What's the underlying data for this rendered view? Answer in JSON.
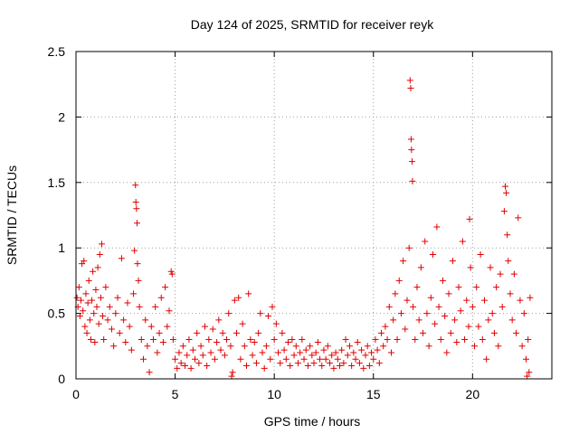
{
  "chart_data": {
    "type": "scatter",
    "title": "Day 124 of 2025, SRMTID for receiver reyk",
    "xlabel": "GPS time / hours",
    "ylabel": "SRMTID / TECUs",
    "xlim": [
      0,
      24
    ],
    "ylim": [
      0,
      2.5
    ],
    "x_ticks": [
      0,
      5,
      10,
      15,
      20
    ],
    "x_tick_labels": [
      "0",
      "5",
      "10",
      "15",
      "20"
    ],
    "y_ticks": [
      0,
      0.5,
      1,
      1.5,
      2,
      2.5
    ],
    "y_tick_labels": [
      "0",
      "0.5",
      "1",
      "1.5",
      "2",
      "2.5"
    ],
    "grid": true,
    "marker": "plus",
    "color": "#e00000",
    "series": [
      {
        "name": "SRMTID",
        "points": [
          [
            0.05,
            0.62
          ],
          [
            0.1,
            0.55
          ],
          [
            0.15,
            0.7
          ],
          [
            0.2,
            0.48
          ],
          [
            0.25,
            0.6
          ],
          [
            0.3,
            0.88
          ],
          [
            0.35,
            0.52
          ],
          [
            0.4,
            0.9
          ],
          [
            0.45,
            0.4
          ],
          [
            0.5,
            0.65
          ],
          [
            0.55,
            0.35
          ],
          [
            0.6,
            0.58
          ],
          [
            0.65,
            0.75
          ],
          [
            0.7,
            0.45
          ],
          [
            0.75,
            0.3
          ],
          [
            0.8,
            0.6
          ],
          [
            0.85,
            0.82
          ],
          [
            0.9,
            0.5
          ],
          [
            0.95,
            0.28
          ],
          [
            1.0,
            0.68
          ],
          [
            1.05,
            0.55
          ],
          [
            1.1,
            0.85
          ],
          [
            1.15,
            0.42
          ],
          [
            1.2,
            0.95
          ],
          [
            1.25,
            0.62
          ],
          [
            1.3,
            1.03
          ],
          [
            1.35,
            0.48
          ],
          [
            1.4,
            0.3
          ],
          [
            1.5,
            0.7
          ],
          [
            1.6,
            0.45
          ],
          [
            1.7,
            0.55
          ],
          [
            1.8,
            0.38
          ],
          [
            1.9,
            0.25
          ],
          [
            2.0,
            0.5
          ],
          [
            2.1,
            0.62
          ],
          [
            2.2,
            0.35
          ],
          [
            2.3,
            0.92
          ],
          [
            2.4,
            0.45
          ],
          [
            2.5,
            0.28
          ],
          [
            2.6,
            0.58
          ],
          [
            2.7,
            0.4
          ],
          [
            2.8,
            0.22
          ],
          [
            2.9,
            0.65
          ],
          [
            2.95,
            0.98
          ],
          [
            3.0,
            1.48
          ],
          [
            3.02,
            1.35
          ],
          [
            3.05,
            1.3
          ],
          [
            3.08,
            1.19
          ],
          [
            3.1,
            0.88
          ],
          [
            3.15,
            0.75
          ],
          [
            3.2,
            0.55
          ],
          [
            3.3,
            0.3
          ],
          [
            3.4,
            0.15
          ],
          [
            3.5,
            0.45
          ],
          [
            3.6,
            0.25
          ],
          [
            3.7,
            0.05
          ],
          [
            3.8,
            0.4
          ],
          [
            3.9,
            0.3
          ],
          [
            4.0,
            0.55
          ],
          [
            4.1,
            0.2
          ],
          [
            4.2,
            0.35
          ],
          [
            4.3,
            0.62
          ],
          [
            4.4,
            0.28
          ],
          [
            4.5,
            0.7
          ],
          [
            4.6,
            0.4
          ],
          [
            4.7,
            0.52
          ],
          [
            4.8,
            0.82
          ],
          [
            4.85,
            0.8
          ],
          [
            4.9,
            0.3
          ],
          [
            5.0,
            0.15
          ],
          [
            5.1,
            0.08
          ],
          [
            5.2,
            0.2
          ],
          [
            5.3,
            0.12
          ],
          [
            5.4,
            0.25
          ],
          [
            5.5,
            0.1
          ],
          [
            5.6,
            0.18
          ],
          [
            5.7,
            0.3
          ],
          [
            5.8,
            0.08
          ],
          [
            5.9,
            0.22
          ],
          [
            6.0,
            0.15
          ],
          [
            6.1,
            0.35
          ],
          [
            6.2,
            0.12
          ],
          [
            6.3,
            0.25
          ],
          [
            6.4,
            0.18
          ],
          [
            6.5,
            0.4
          ],
          [
            6.6,
            0.1
          ],
          [
            6.7,
            0.3
          ],
          [
            6.8,
            0.2
          ],
          [
            6.9,
            0.38
          ],
          [
            7.0,
            0.15
          ],
          [
            7.1,
            0.28
          ],
          [
            7.2,
            0.45
          ],
          [
            7.3,
            0.22
          ],
          [
            7.4,
            0.35
          ],
          [
            7.5,
            0.18
          ],
          [
            7.6,
            0.3
          ],
          [
            7.7,
            0.5
          ],
          [
            7.8,
            0.25
          ],
          [
            7.85,
            0.02
          ],
          [
            7.9,
            0.05
          ],
          [
            8.0,
            0.6
          ],
          [
            8.1,
            0.35
          ],
          [
            8.2,
            0.62
          ],
          [
            8.3,
            0.15
          ],
          [
            8.4,
            0.42
          ],
          [
            8.5,
            0.25
          ],
          [
            8.6,
            0.1
          ],
          [
            8.7,
            0.65
          ],
          [
            8.8,
            0.3
          ],
          [
            8.9,
            0.18
          ],
          [
            9.0,
            0.28
          ],
          [
            9.1,
            0.12
          ],
          [
            9.2,
            0.35
          ],
          [
            9.3,
            0.5
          ],
          [
            9.4,
            0.2
          ],
          [
            9.5,
            0.08
          ],
          [
            9.6,
            0.25
          ],
          [
            9.7,
            0.48
          ],
          [
            9.8,
            0.15
          ],
          [
            9.9,
            0.55
          ],
          [
            10.0,
            0.3
          ],
          [
            10.1,
            0.42
          ],
          [
            10.2,
            0.2
          ],
          [
            10.3,
            0.12
          ],
          [
            10.4,
            0.35
          ],
          [
            10.5,
            0.22
          ],
          [
            10.6,
            0.15
          ],
          [
            10.7,
            0.28
          ],
          [
            10.8,
            0.1
          ],
          [
            10.9,
            0.3
          ],
          [
            11.0,
            0.18
          ],
          [
            11.1,
            0.25
          ],
          [
            11.2,
            0.12
          ],
          [
            11.3,
            0.2
          ],
          [
            11.4,
            0.3
          ],
          [
            11.5,
            0.15
          ],
          [
            11.6,
            0.22
          ],
          [
            11.7,
            0.1
          ],
          [
            11.8,
            0.25
          ],
          [
            11.9,
            0.18
          ],
          [
            12.0,
            0.12
          ],
          [
            12.1,
            0.2
          ],
          [
            12.2,
            0.28
          ],
          [
            12.3,
            0.15
          ],
          [
            12.4,
            0.1
          ],
          [
            12.5,
            0.22
          ],
          [
            12.6,
            0.15
          ],
          [
            12.7,
            0.25
          ],
          [
            12.8,
            0.12
          ],
          [
            12.9,
            0.18
          ],
          [
            13.0,
            0.08
          ],
          [
            13.1,
            0.2
          ],
          [
            13.2,
            0.15
          ],
          [
            13.3,
            0.1
          ],
          [
            13.4,
            0.22
          ],
          [
            13.5,
            0.12
          ],
          [
            13.6,
            0.3
          ],
          [
            13.7,
            0.18
          ],
          [
            13.8,
            0.25
          ],
          [
            13.9,
            0.1
          ],
          [
            14.0,
            0.2
          ],
          [
            14.1,
            0.15
          ],
          [
            14.2,
            0.28
          ],
          [
            14.3,
            0.12
          ],
          [
            14.4,
            0.22
          ],
          [
            14.5,
            0.08
          ],
          [
            14.6,
            0.18
          ],
          [
            14.7,
            0.25
          ],
          [
            14.8,
            0.1
          ],
          [
            14.9,
            0.2
          ],
          [
            15.0,
            0.15
          ],
          [
            15.1,
            0.3
          ],
          [
            15.2,
            0.22
          ],
          [
            15.3,
            0.12
          ],
          [
            15.4,
            0.35
          ],
          [
            15.5,
            0.25
          ],
          [
            15.6,
            0.4
          ],
          [
            15.7,
            0.3
          ],
          [
            15.8,
            0.55
          ],
          [
            15.9,
            0.2
          ],
          [
            16.0,
            0.45
          ],
          [
            16.1,
            0.65
          ],
          [
            16.2,
            0.3
          ],
          [
            16.3,
            0.75
          ],
          [
            16.4,
            0.5
          ],
          [
            16.5,
            0.9
          ],
          [
            16.6,
            0.38
          ],
          [
            16.7,
            0.6
          ],
          [
            16.8,
            1.0
          ],
          [
            16.85,
            2.28
          ],
          [
            16.88,
            2.22
          ],
          [
            16.9,
            1.83
          ],
          [
            16.92,
            1.75
          ],
          [
            16.95,
            1.66
          ],
          [
            16.97,
            1.51
          ],
          [
            17.0,
            0.55
          ],
          [
            17.1,
            0.3
          ],
          [
            17.2,
            0.7
          ],
          [
            17.3,
            0.45
          ],
          [
            17.4,
            0.85
          ],
          [
            17.5,
            0.35
          ],
          [
            17.6,
            1.05
          ],
          [
            17.7,
            0.5
          ],
          [
            17.8,
            0.25
          ],
          [
            17.9,
            0.62
          ],
          [
            18.0,
            0.95
          ],
          [
            18.1,
            0.42
          ],
          [
            18.2,
            1.16
          ],
          [
            18.3,
            0.55
          ],
          [
            18.4,
            0.3
          ],
          [
            18.5,
            0.75
          ],
          [
            18.6,
            0.48
          ],
          [
            18.7,
            0.2
          ],
          [
            18.8,
            0.65
          ],
          [
            18.9,
            0.35
          ],
          [
            19.0,
            0.9
          ],
          [
            19.1,
            0.45
          ],
          [
            19.2,
            0.28
          ],
          [
            19.3,
            0.7
          ],
          [
            19.4,
            0.52
          ],
          [
            19.5,
            1.05
          ],
          [
            19.6,
            0.3
          ],
          [
            19.7,
            0.6
          ],
          [
            19.8,
            0.4
          ],
          [
            19.85,
            1.22
          ],
          [
            19.9,
            0.85
          ],
          [
            20.0,
            0.55
          ],
          [
            20.1,
            0.25
          ],
          [
            20.2,
            0.7
          ],
          [
            20.3,
            0.4
          ],
          [
            20.4,
            0.95
          ],
          [
            20.5,
            0.3
          ],
          [
            20.6,
            0.6
          ],
          [
            20.7,
            0.15
          ],
          [
            20.8,
            0.45
          ],
          [
            20.9,
            0.85
          ],
          [
            21.0,
            0.5
          ],
          [
            21.1,
            0.35
          ],
          [
            21.2,
            0.7
          ],
          [
            21.3,
            0.25
          ],
          [
            21.4,
            0.8
          ],
          [
            21.5,
            0.55
          ],
          [
            21.6,
            1.28
          ],
          [
            21.65,
            1.47
          ],
          [
            21.7,
            1.42
          ],
          [
            21.75,
            1.1
          ],
          [
            21.8,
            0.9
          ],
          [
            21.9,
            0.65
          ],
          [
            22.0,
            0.45
          ],
          [
            22.1,
            0.8
          ],
          [
            22.2,
            0.35
          ],
          [
            22.3,
            1.23
          ],
          [
            22.4,
            0.6
          ],
          [
            22.5,
            0.25
          ],
          [
            22.6,
            0.5
          ],
          [
            22.7,
            0.15
          ],
          [
            22.75,
            0.02
          ],
          [
            22.8,
            0.3
          ],
          [
            22.85,
            0.05
          ],
          [
            22.9,
            0.62
          ]
        ]
      }
    ]
  }
}
